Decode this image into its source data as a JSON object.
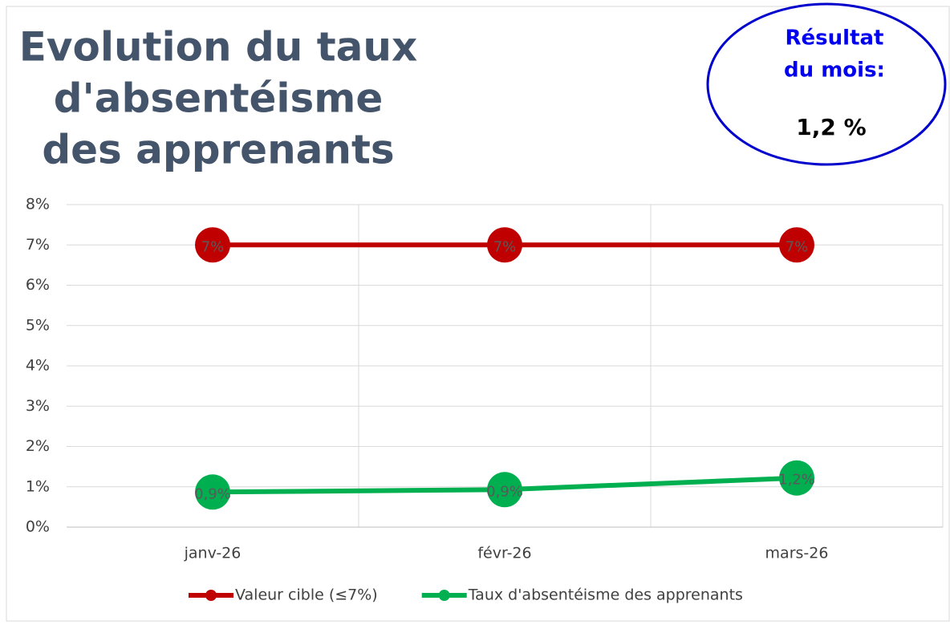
{
  "chart_data": {
    "type": "line",
    "title": [
      "Evolution du taux",
      "d'absentéisme",
      "des apprenants"
    ],
    "annotation": {
      "lines": [
        "Résultat",
        "du mois:"
      ],
      "value": "1,2 %"
    },
    "categories": [
      "janv-26",
      "févr-26",
      "mars-26"
    ],
    "series": [
      {
        "name": "Valeur cible (≤7%)",
        "color": "#c00000",
        "values": [
          7,
          7,
          7
        ],
        "value_labels": [
          "7%",
          "7%",
          "7%"
        ]
      },
      {
        "name": "Taux d'absentéisme des apprenants",
        "color": "#00b050",
        "values": [
          0.87,
          0.93,
          1.22
        ],
        "value_labels": [
          "0,9%",
          "0,9%",
          "1,2%"
        ]
      }
    ],
    "ylim": [
      0,
      8
    ],
    "yticks": [
      {
        "value": 0,
        "label": "0%"
      },
      {
        "value": 1,
        "label": "1%"
      },
      {
        "value": 2,
        "label": "2%"
      },
      {
        "value": 3,
        "label": "3%"
      },
      {
        "value": 4,
        "label": "4%"
      },
      {
        "value": 5,
        "label": "5%"
      },
      {
        "value": 6,
        "label": "6%"
      },
      {
        "value": 7,
        "label": "7%"
      },
      {
        "value": 8,
        "label": "8%"
      }
    ],
    "grid": true,
    "legend": "bottom"
  }
}
